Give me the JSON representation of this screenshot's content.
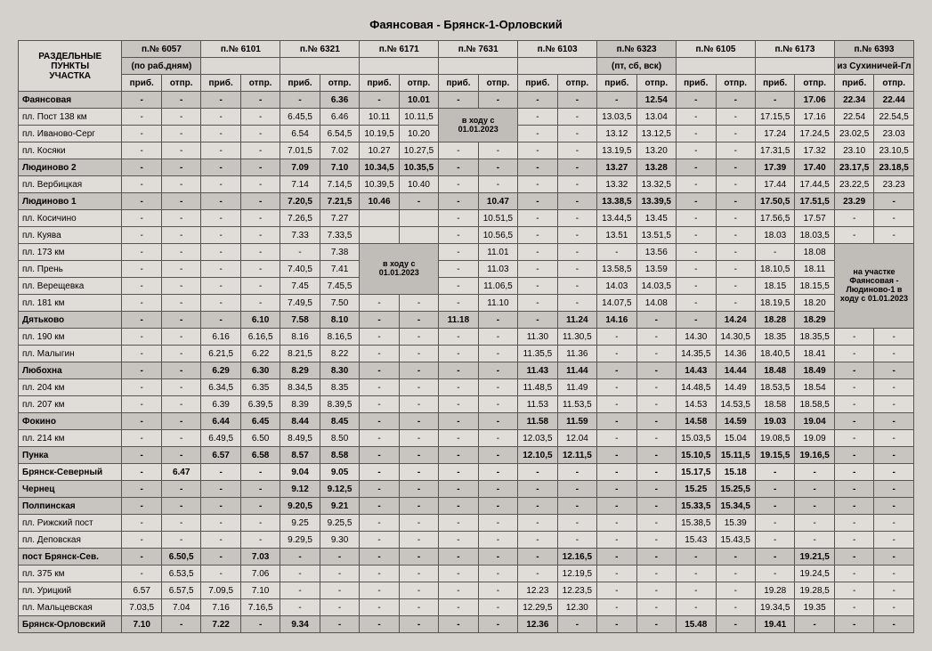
{
  "title": "Фаянсовая - Брянск-1-Орловский",
  "header": {
    "station_col": [
      "РАЗДЕЛЬНЫЕ",
      "ПУНКТЫ",
      "УЧАСТКА"
    ],
    "trains": [
      {
        "no": "п.№ 6057",
        "sub": "(по раб.дням)"
      },
      {
        "no": "п.№ 6101",
        "sub": ""
      },
      {
        "no": "п.№ 6321",
        "sub": ""
      },
      {
        "no": "п.№ 6171",
        "sub": ""
      },
      {
        "no": "п.№ 7631",
        "sub": ""
      },
      {
        "no": "п.№ 6103",
        "sub": ""
      },
      {
        "no": "п.№ 6323",
        "sub": "(пт, сб, вск)"
      },
      {
        "no": "п.№ 6105",
        "sub": ""
      },
      {
        "no": "п.№ 6173",
        "sub": ""
      },
      {
        "no": "п.№ 6393",
        "sub": "из Сухиничей-Гл"
      }
    ],
    "arr": "приб.",
    "dep": "отпр."
  },
  "note1": "в ходу с 01.01.2023",
  "note2": "на участке Фаянсовая - Людиново-1 в ходу с 01.01.2023",
  "rows": [
    {
      "st": "Фаянсовая",
      "b": 1,
      "s": 1,
      "c": [
        "-",
        "-",
        "-",
        "-",
        "-",
        "6.36",
        "-",
        "10.01",
        "-",
        "-",
        "-",
        "-",
        "-",
        "12.54",
        "-",
        "-",
        "-",
        "17.06",
        "22.34",
        "22.44"
      ]
    },
    {
      "st": "пл. Пост 138 км",
      "c": [
        "-",
        "-",
        "-",
        "-",
        "6.45,5",
        "6.46",
        "10.11",
        "10.11,5",
        "N1",
        "",
        "-",
        "-",
        "13.03,5",
        "13.04",
        "-",
        "-",
        "17.15,5",
        "17.16",
        "22.54",
        "22.54,5"
      ]
    },
    {
      "st": "пл. Иваново-Серг",
      "c": [
        "-",
        "-",
        "-",
        "-",
        "6.54",
        "6.54,5",
        "10.19,5",
        "10.20",
        "",
        "",
        "-",
        "-",
        "13.12",
        "13.12,5",
        "-",
        "-",
        "17.24",
        "17.24,5",
        "23.02,5",
        "23.03"
      ]
    },
    {
      "st": "пл. Косяки",
      "c": [
        "-",
        "-",
        "-",
        "-",
        "7.01,5",
        "7.02",
        "10.27",
        "10.27,5",
        "-",
        "-",
        "-",
        "-",
        "13.19,5",
        "13.20",
        "-",
        "-",
        "17.31,5",
        "17.32",
        "23.10",
        "23.10,5"
      ]
    },
    {
      "st": "Людиново 2",
      "b": 1,
      "s": 1,
      "c": [
        "-",
        "-",
        "-",
        "-",
        "7.09",
        "7.10",
        "10.34,5",
        "10.35,5",
        "-",
        "-",
        "-",
        "-",
        "13.27",
        "13.28",
        "-",
        "-",
        "17.39",
        "17.40",
        "23.17,5",
        "23.18,5"
      ]
    },
    {
      "st": "пл. Вербицкая",
      "c": [
        "-",
        "-",
        "-",
        "-",
        "7.14",
        "7.14,5",
        "10.39,5",
        "10.40",
        "-",
        "-",
        "-",
        "-",
        "13.32",
        "13.32,5",
        "-",
        "-",
        "17.44",
        "17.44,5",
        "23.22,5",
        "23.23"
      ]
    },
    {
      "st": "Людиново 1",
      "b": 1,
      "s": 1,
      "c": [
        "-",
        "-",
        "-",
        "-",
        "7.20,5",
        "7.21,5",
        "10.46",
        "-",
        "-",
        "10.47",
        "-",
        "-",
        "13.38,5",
        "13.39,5",
        "-",
        "-",
        "17.50,5",
        "17.51,5",
        "23.29",
        "-"
      ]
    },
    {
      "st": "пл. Косичино",
      "c": [
        "-",
        "-",
        "-",
        "-",
        "7.26,5",
        "7.27",
        "",
        "",
        "-",
        "10.51,5",
        "-",
        "-",
        "13.44,5",
        "13.45",
        "-",
        "-",
        "17.56,5",
        "17.57",
        "-",
        "-"
      ]
    },
    {
      "st": "пл. Куява",
      "c": [
        "-",
        "-",
        "-",
        "-",
        "7.33",
        "7.33,5",
        "",
        "",
        "-",
        "10.56,5",
        "-",
        "-",
        "13.51",
        "13.51,5",
        "-",
        "-",
        "18.03",
        "18.03,5",
        "-",
        "-"
      ]
    },
    {
      "st": "пл. 173 км",
      "c": [
        "-",
        "-",
        "-",
        "-",
        "-",
        "7.38",
        "N1",
        "",
        "-",
        "11.01",
        "-",
        "-",
        "-",
        "13.56",
        "-",
        "-",
        "-",
        "18.08",
        "N2",
        "N2"
      ]
    },
    {
      "st": "пл. Прень",
      "c": [
        "-",
        "-",
        "-",
        "-",
        "7.40,5",
        "7.41",
        "",
        "",
        "-",
        "11.03",
        "-",
        "-",
        "13.58,5",
        "13.59",
        "-",
        "-",
        "18.10,5",
        "18.11",
        "N2",
        "N2"
      ]
    },
    {
      "st": "пл. Верещевка",
      "c": [
        "-",
        "-",
        "-",
        "-",
        "7.45",
        "7.45,5",
        "",
        "",
        "-",
        "11.06,5",
        "-",
        "-",
        "14.03",
        "14.03,5",
        "-",
        "-",
        "18.15",
        "18.15,5",
        "N2",
        "N2"
      ]
    },
    {
      "st": "пл. 181 км",
      "c": [
        "-",
        "-",
        "-",
        "-",
        "7.49,5",
        "7.50",
        "-",
        "-",
        "-",
        "11.10",
        "-",
        "-",
        "14.07,5",
        "14.08",
        "-",
        "-",
        "18.19,5",
        "18.20",
        "N2",
        "N2"
      ]
    },
    {
      "st": "Дятьково",
      "b": 1,
      "s": 1,
      "c": [
        "-",
        "-",
        "-",
        "6.10",
        "7.58",
        "8.10",
        "-",
        "-",
        "11.18",
        "-",
        "-",
        "11.24",
        "14.16",
        "-",
        "-",
        "14.24",
        "18.28",
        "18.29",
        "N2",
        "N2"
      ]
    },
    {
      "st": "пл. 190 км",
      "c": [
        "-",
        "-",
        "6.16",
        "6.16,5",
        "8.16",
        "8.16,5",
        "-",
        "-",
        "-",
        "-",
        "11.30",
        "11.30,5",
        "-",
        "-",
        "14.30",
        "14.30,5",
        "18.35",
        "18.35,5",
        "-",
        "-"
      ]
    },
    {
      "st": "пл. Малыгин",
      "c": [
        "-",
        "-",
        "6.21,5",
        "6.22",
        "8.21,5",
        "8.22",
        "-",
        "-",
        "-",
        "-",
        "11.35,5",
        "11.36",
        "-",
        "-",
        "14.35,5",
        "14.36",
        "18.40,5",
        "18.41",
        "-",
        "-"
      ]
    },
    {
      "st": "Любохна",
      "b": 1,
      "s": 1,
      "c": [
        "-",
        "-",
        "6.29",
        "6.30",
        "8.29",
        "8.30",
        "-",
        "-",
        "-",
        "-",
        "11.43",
        "11.44",
        "-",
        "-",
        "14.43",
        "14.44",
        "18.48",
        "18.49",
        "-",
        "-"
      ]
    },
    {
      "st": "пл. 204 км",
      "c": [
        "-",
        "-",
        "6.34,5",
        "6.35",
        "8.34,5",
        "8.35",
        "-",
        "-",
        "-",
        "-",
        "11.48,5",
        "11.49",
        "-",
        "-",
        "14.48,5",
        "14.49",
        "18.53,5",
        "18.54",
        "-",
        "-"
      ]
    },
    {
      "st": "пл. 207 км",
      "c": [
        "-",
        "-",
        "6.39",
        "6.39,5",
        "8.39",
        "8.39,5",
        "-",
        "-",
        "-",
        "-",
        "11.53",
        "11.53,5",
        "-",
        "-",
        "14.53",
        "14.53,5",
        "18.58",
        "18.58,5",
        "-",
        "-"
      ]
    },
    {
      "st": "Фокино",
      "b": 1,
      "s": 1,
      "c": [
        "-",
        "-",
        "6.44",
        "6.45",
        "8.44",
        "8.45",
        "-",
        "-",
        "-",
        "-",
        "11.58",
        "11.59",
        "-",
        "-",
        "14.58",
        "14.59",
        "19.03",
        "19.04",
        "-",
        "-"
      ]
    },
    {
      "st": "пл. 214 км",
      "c": [
        "-",
        "-",
        "6.49,5",
        "6.50",
        "8.49,5",
        "8.50",
        "-",
        "-",
        "-",
        "-",
        "12.03,5",
        "12.04",
        "-",
        "-",
        "15.03,5",
        "15.04",
        "19.08,5",
        "19.09",
        "-",
        "-"
      ]
    },
    {
      "st": "Пунка",
      "b": 1,
      "s": 1,
      "c": [
        "-",
        "-",
        "6.57",
        "6.58",
        "8.57",
        "8.58",
        "-",
        "-",
        "-",
        "-",
        "12.10,5",
        "12.11,5",
        "-",
        "-",
        "15.10,5",
        "15.11,5",
        "19.15,5",
        "19.16,5",
        "-",
        "-"
      ]
    },
    {
      "st": "Брянск-Северный",
      "b": 1,
      "c": [
        "-",
        "6.47",
        "-",
        "-",
        "9.04",
        "9.05",
        "-",
        "-",
        "-",
        "-",
        "-",
        "-",
        "-",
        "-",
        "15.17,5",
        "15.18",
        "-",
        "-",
        "-",
        "-"
      ]
    },
    {
      "st": "Чернец",
      "b": 1,
      "s": 1,
      "c": [
        "-",
        "-",
        "-",
        "-",
        "9.12",
        "9.12,5",
        "-",
        "-",
        "-",
        "-",
        "-",
        "-",
        "-",
        "-",
        "15.25",
        "15.25,5",
        "-",
        "-",
        "-",
        "-"
      ]
    },
    {
      "st": "Полпинская",
      "b": 1,
      "s": 1,
      "c": [
        "-",
        "-",
        "-",
        "-",
        "9.20,5",
        "9.21",
        "-",
        "-",
        "-",
        "-",
        "-",
        "-",
        "-",
        "-",
        "15.33,5",
        "15.34,5",
        "-",
        "-",
        "-",
        "-"
      ]
    },
    {
      "st": "пл. Рижский пост",
      "c": [
        "-",
        "-",
        "-",
        "-",
        "9.25",
        "9.25,5",
        "-",
        "-",
        "-",
        "-",
        "-",
        "-",
        "-",
        "-",
        "15.38,5",
        "15.39",
        "-",
        "-",
        "-",
        "-"
      ]
    },
    {
      "st": "пл. Деповская",
      "c": [
        "-",
        "-",
        "-",
        "-",
        "9.29,5",
        "9.30",
        "-",
        "-",
        "-",
        "-",
        "-",
        "-",
        "-",
        "-",
        "15.43",
        "15.43,5",
        "-",
        "-",
        "-",
        "-"
      ]
    },
    {
      "st": "пост Брянск-Сев.",
      "b": 1,
      "s": 1,
      "c": [
        "-",
        "6.50,5",
        "-",
        "7.03",
        "-",
        "-",
        "-",
        "-",
        "-",
        "-",
        "-",
        "12.16,5",
        "-",
        "-",
        "-",
        "-",
        "-",
        "19.21,5",
        "-",
        "-"
      ]
    },
    {
      "st": "пл. 375 км",
      "c": [
        "-",
        "6.53,5",
        "-",
        "7.06",
        "-",
        "-",
        "-",
        "-",
        "-",
        "-",
        "-",
        "12.19,5",
        "-",
        "-",
        "-",
        "-",
        "-",
        "19.24,5",
        "-",
        "-"
      ]
    },
    {
      "st": "пл. Урицкий",
      "c": [
        "6.57",
        "6.57,5",
        "7.09,5",
        "7.10",
        "-",
        "-",
        "-",
        "-",
        "-",
        "-",
        "12.23",
        "12.23,5",
        "-",
        "-",
        "-",
        "-",
        "19.28",
        "19.28,5",
        "-",
        "-"
      ]
    },
    {
      "st": "пл. Мальцевская",
      "c": [
        "7.03,5",
        "7.04",
        "7.16",
        "7.16,5",
        "-",
        "-",
        "-",
        "-",
        "-",
        "-",
        "12.29,5",
        "12.30",
        "-",
        "-",
        "-",
        "-",
        "19.34,5",
        "19.35",
        "-",
        "-"
      ]
    },
    {
      "st": "Брянск-Орловский",
      "b": 1,
      "s": 1,
      "c": [
        "7.10",
        "-",
        "7.22",
        "-",
        "9.34",
        "-",
        "-",
        "-",
        "-",
        "-",
        "12.36",
        "-",
        "-",
        "-",
        "15.48",
        "-",
        "19.41",
        "-",
        "-",
        "-"
      ]
    }
  ]
}
